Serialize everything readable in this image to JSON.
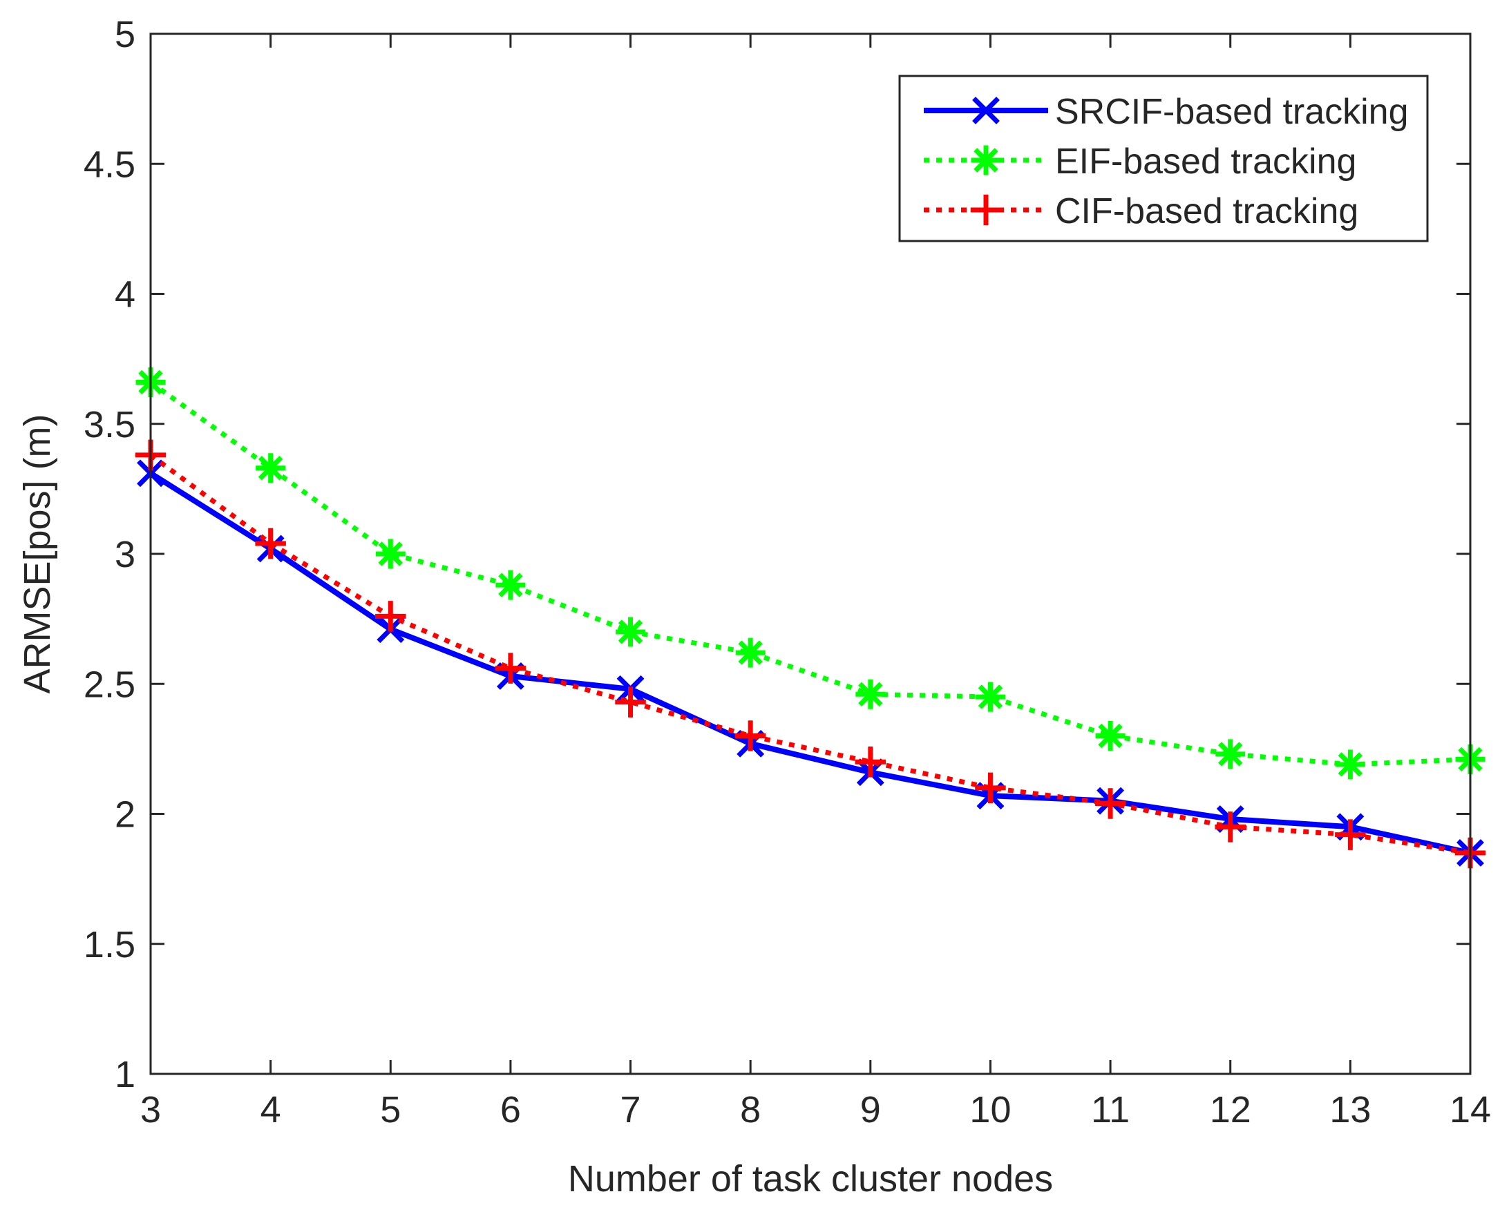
{
  "chart_data": {
    "type": "line",
    "title": "",
    "xlabel": "Number of task cluster nodes",
    "ylabel": "ARMSE[pos] (m)",
    "xlim": [
      3,
      14
    ],
    "ylim": [
      1,
      5
    ],
    "xticks": [
      "3",
      "4",
      "5",
      "6",
      "7",
      "8",
      "9",
      "10",
      "11",
      "12",
      "13",
      "14"
    ],
    "yticks": [
      "1",
      "1.5",
      "2",
      "2.5",
      "3",
      "3.5",
      "4",
      "4.5",
      "5"
    ],
    "x": [
      3,
      4,
      5,
      6,
      7,
      8,
      9,
      10,
      11,
      12,
      13,
      14
    ],
    "legend_position": "top-right",
    "grid": false,
    "series": [
      {
        "name": "SRCIF-based tracking",
        "color": "#0000ff",
        "line_style": "solid",
        "marker": "x",
        "values": [
          3.31,
          3.02,
          2.71,
          2.53,
          2.48,
          2.27,
          2.16,
          2.07,
          2.05,
          1.98,
          1.95,
          1.85
        ]
      },
      {
        "name": "EIF-based tracking",
        "color": "#00ff00",
        "line_style": "dotted",
        "marker": "*",
        "values": [
          3.66,
          3.33,
          3.0,
          2.88,
          2.7,
          2.62,
          2.46,
          2.45,
          2.3,
          2.23,
          2.19,
          2.21
        ]
      },
      {
        "name": "CIF-based tracking",
        "color": "#ff0000",
        "line_style": "dotted",
        "marker": "+",
        "values": [
          3.38,
          3.04,
          2.76,
          2.56,
          2.43,
          2.3,
          2.2,
          2.1,
          2.04,
          1.95,
          1.92,
          1.85
        ]
      }
    ]
  }
}
